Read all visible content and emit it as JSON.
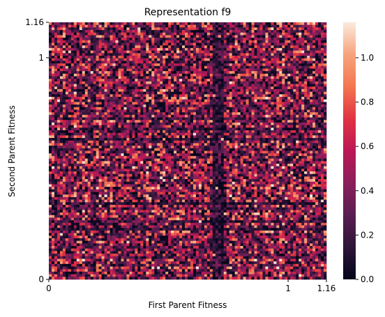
{
  "chart_data": {
    "type": "heatmap",
    "title": "Representation f9",
    "xlabel": "First Parent Fitness",
    "ylabel": "Second Parent Fitness",
    "x_ticks": [
      "0",
      "1",
      "1.16"
    ],
    "y_ticks": [
      "0",
      "1",
      "1.16"
    ],
    "xlim": [
      0,
      1.16
    ],
    "ylim": [
      0,
      1.16
    ],
    "grid_cols": 100,
    "grid_rows": 100,
    "colorbar": {
      "range": [
        0.0,
        1.16
      ],
      "ticks": [
        "0.0",
        "0.2",
        "0.4",
        "0.6",
        "0.8",
        "1.0"
      ],
      "colormap": "rocket",
      "colors": [
        "#03051a",
        "#2e1539",
        "#591e50",
        "#8a1f5b",
        "#bc1656",
        "#e13342",
        "#f37651",
        "#f6a47c",
        "#faebdd"
      ]
    },
    "grid": false,
    "legend": "none"
  }
}
